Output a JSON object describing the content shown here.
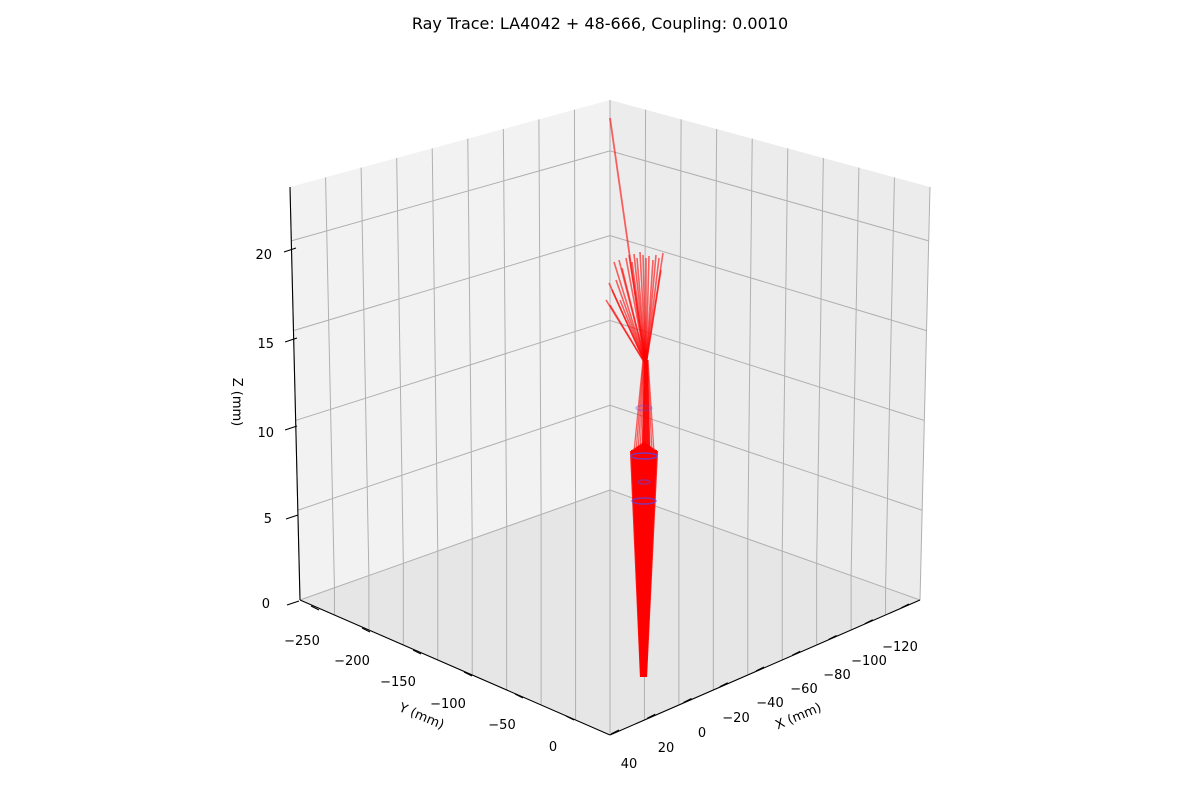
{
  "chart_data": {
    "type": "line",
    "title": "Ray Trace: LA4042 + 48-666, Coupling: 0.0010",
    "xlabel": "X (mm)",
    "ylabel": "Y (mm)",
    "zlabel": "Z (mm)",
    "x_ticks": [
      "40",
      "20",
      "0",
      "−20",
      "−40",
      "−60",
      "−80",
      "−100",
      "−120"
    ],
    "y_ticks": [
      "0",
      "−50",
      "−100",
      "−150",
      "−200",
      "−250"
    ],
    "z_ticks": [
      "0",
      "5",
      "10",
      "15",
      "20"
    ],
    "xlim": [
      40,
      -130
    ],
    "ylim": [
      0,
      -270
    ],
    "zlim": [
      0,
      23
    ],
    "grid": true,
    "series": [
      {
        "kind": "rays",
        "color": "#ff0000",
        "description_points": [
          {
            "label": "exit bundle",
            "z_range": [
              0,
              9.5
            ]
          },
          {
            "label": "focus",
            "z": 15
          },
          {
            "label": "fan",
            "z_range": [
              15,
              22
            ]
          }
        ]
      },
      {
        "kind": "lens-surfaces",
        "color": "#5050ff",
        "z_values": [
          5.5,
          8.0,
          11.0
        ]
      }
    ]
  },
  "colors": {
    "ray": "#ff0000",
    "lens": "#4b4bff",
    "pane_left": "#f2f2f2",
    "pane_right": "#ececec",
    "pane_floor": "#e6e6e6",
    "grid": "#b0b0b0"
  }
}
